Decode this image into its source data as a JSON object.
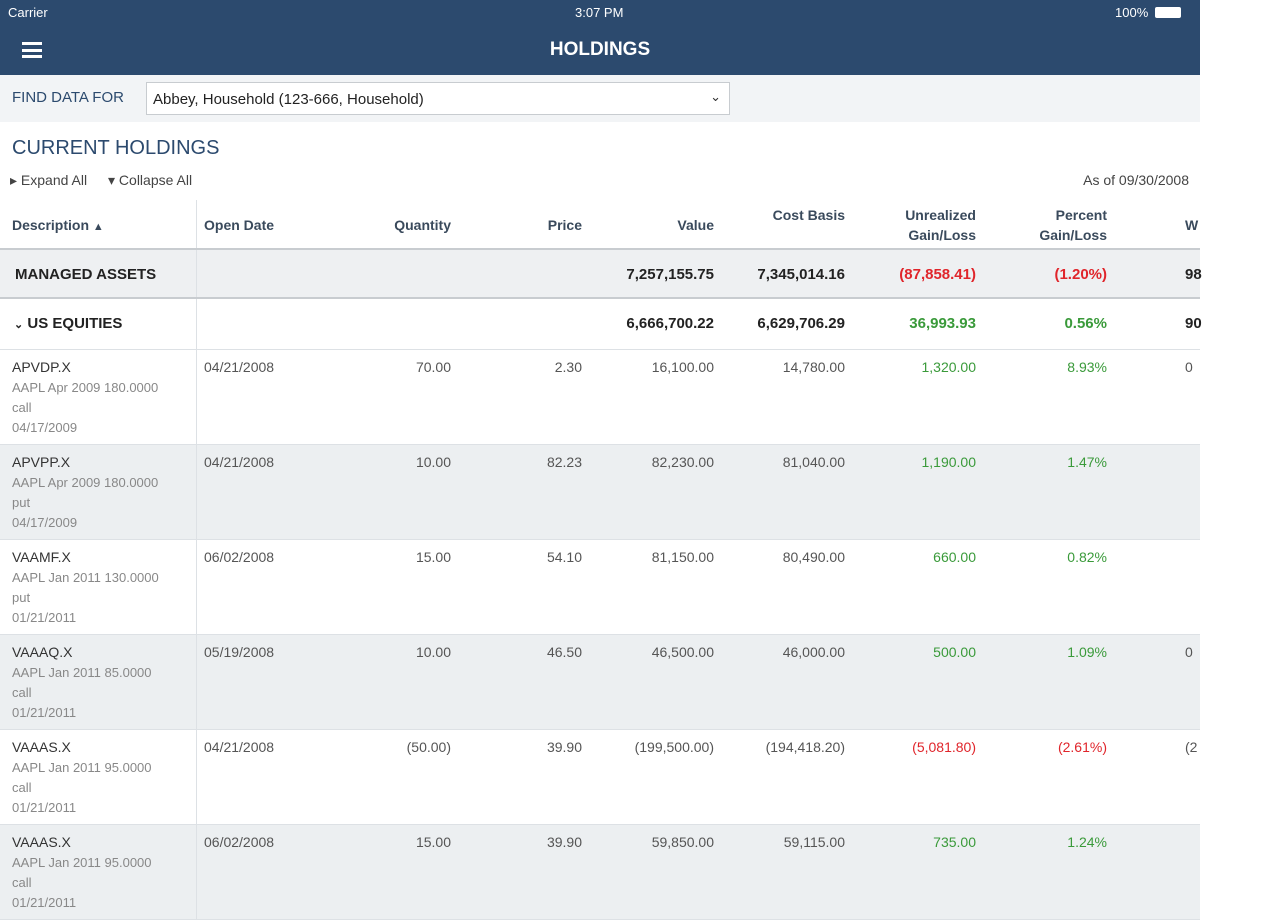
{
  "status_bar": {
    "carrier": "Carrier",
    "time": "3:07 PM",
    "battery": "100%"
  },
  "header": {
    "title": "HOLDINGS"
  },
  "filter": {
    "label": "FIND DATA FOR",
    "value": "Abbey, Household (123-666, Household)"
  },
  "section": {
    "title": "CURRENT HOLDINGS",
    "expand": "Expand All",
    "collapse": "Collapse All",
    "as_of": "As of 09/30/2008"
  },
  "table": {
    "columns": [
      "Description",
      "Open Date",
      "Quantity",
      "Price",
      "Value",
      "Cost Basis",
      "Unrealized Gain/Loss",
      "Percent Gain/Loss",
      "W"
    ],
    "groups": [
      {
        "name": "MANAGED ASSETS",
        "value": "7,257,155.75",
        "cost": "7,345,014.16",
        "gain": "(87,858.41)",
        "percent": "(1.20%)",
        "w": "98"
      },
      {
        "name": "US EQUITIES",
        "value": "6,666,700.22",
        "cost": "6,629,706.29",
        "gain": "36,993.93",
        "percent": "0.56%",
        "w": "90"
      }
    ],
    "rows": [
      {
        "symbol": "APVDP.X",
        "description": "AAPL Apr 2009 180.0000",
        "kind": "call",
        "expiry": "04/17/2009",
        "open": "04/21/2008",
        "quantity": "70.00",
        "price": "2.30",
        "value": "16,100.00",
        "cost": "14,780.00",
        "gain": "1,320.00",
        "percent": "8.93%",
        "w": "0"
      },
      {
        "symbol": "APVPP.X",
        "description": "AAPL Apr 2009 180.0000",
        "kind": "put",
        "expiry": "04/17/2009",
        "open": "04/21/2008",
        "quantity": "10.00",
        "price": "82.23",
        "value": "82,230.00",
        "cost": "81,040.00",
        "gain": "1,190.00",
        "percent": "1.47%"
      },
      {
        "symbol": "VAAMF.X",
        "description": "AAPL Jan 2011 130.0000",
        "kind": "put",
        "expiry": "01/21/2011",
        "open": "06/02/2008",
        "quantity": "15.00",
        "price": "54.10",
        "value": "81,150.00",
        "cost": "80,490.00",
        "gain": "660.00",
        "percent": "0.82%"
      },
      {
        "symbol": "VAAAQ.X",
        "description": "AAPL Jan 2011 85.0000",
        "kind": "call",
        "expiry": "01/21/2011",
        "open": "05/19/2008",
        "quantity": "10.00",
        "price": "46.50",
        "value": "46,500.00",
        "cost": "46,000.00",
        "gain": "500.00",
        "percent": "1.09%",
        "w": "0"
      },
      {
        "symbol": "VAAAS.X",
        "description": "AAPL Jan 2011 95.0000",
        "kind": "call",
        "expiry": "01/21/2011",
        "open": "04/21/2008",
        "quantity": "(50.00)",
        "price": "39.90",
        "value": "(199,500.00)",
        "cost": "(194,418.20)",
        "gain": "(5,081.80)",
        "percent": "(2.61%)",
        "w": "(2"
      },
      {
        "symbol": "VAAAS.X",
        "description": "AAPL Jan 2011 95.0000",
        "kind": "call",
        "expiry": "01/21/2011",
        "open": "06/02/2008",
        "quantity": "15.00",
        "price": "39.90",
        "value": "59,850.00",
        "cost": "59,115.00",
        "gain": "735.00",
        "percent": "1.24%"
      }
    ]
  }
}
